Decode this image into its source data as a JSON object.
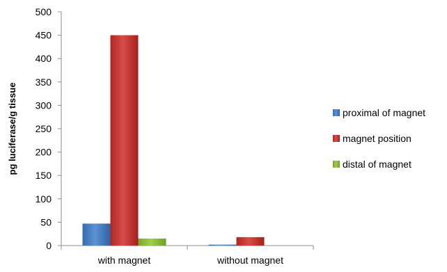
{
  "chart_data": {
    "type": "bar",
    "title": "",
    "xlabel": "",
    "ylabel": "pg luciferase/g tissue",
    "categories": [
      "with magnet",
      "without magnet"
    ],
    "series": [
      {
        "name": "proximal of magnet",
        "values": [
          47,
          2
        ]
      },
      {
        "name": "magnet position",
        "values": [
          450,
          18
        ]
      },
      {
        "name": "distal of magnet",
        "values": [
          15,
          0
        ]
      }
    ],
    "ylim": [
      0,
      500
    ],
    "yticks": [
      "0",
      "50",
      "100",
      "150",
      "200",
      "250",
      "300",
      "350",
      "400",
      "450",
      "500"
    ],
    "grid": false,
    "legend_position": "right",
    "colors": {
      "proximal of magnet": "#4a7fc1",
      "magnet position": "#c43a36",
      "distal of magnet": "#8dbb3c"
    }
  }
}
